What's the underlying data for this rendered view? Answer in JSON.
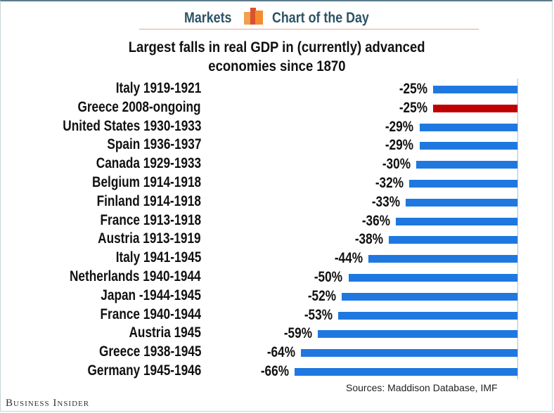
{
  "header": {
    "left": "Markets",
    "right": "Chart of the Day",
    "logo_colors": [
      "#f0a050",
      "#d9532b",
      "#f58b2e"
    ]
  },
  "footer": {
    "source": "Sources: Maddison Database, IMF",
    "brand": "Business Insider"
  },
  "colors": {
    "bar": "#1f78e0",
    "highlight": "#c00000"
  },
  "chart_data": {
    "type": "bar",
    "orientation": "horizontal",
    "title": "Largest falls in real GDP in (currently) advanced economies since 1870",
    "title_lines": [
      "Largest falls in real GDP in (currently) advanced",
      "economies since 1870"
    ],
    "categories": [
      "Italy 1919-1921",
      "Greece 2008-ongoing",
      "United States 1930-1933",
      "Spain 1936-1937",
      "Canada 1929-1933",
      "Belgium 1914-1918",
      "Finland 1914-1918",
      "France 1913-1918",
      "Austria 1913-1919",
      "Italy 1941-1945",
      "Netherlands 1940-1944",
      "Japan -1944-1945",
      "France 1940-1944",
      "Austria 1945",
      "Greece 1938-1945",
      "Germany 1945-1946"
    ],
    "values": [
      -25,
      -25,
      -29,
      -29,
      -30,
      -32,
      -33,
      -36,
      -38,
      -44,
      -50,
      -52,
      -53,
      -59,
      -64,
      -66
    ],
    "labels": [
      "-25%",
      "-25%",
      "-29%",
      "-29%",
      "-30%",
      "-32%",
      "-33%",
      "-36%",
      "-38%",
      "-44%",
      "-50%",
      "-52%",
      "-53%",
      "-59%",
      "-64%",
      "-66%"
    ],
    "highlight_index": 1,
    "unit": "%",
    "grid": false,
    "legend": "none"
  }
}
